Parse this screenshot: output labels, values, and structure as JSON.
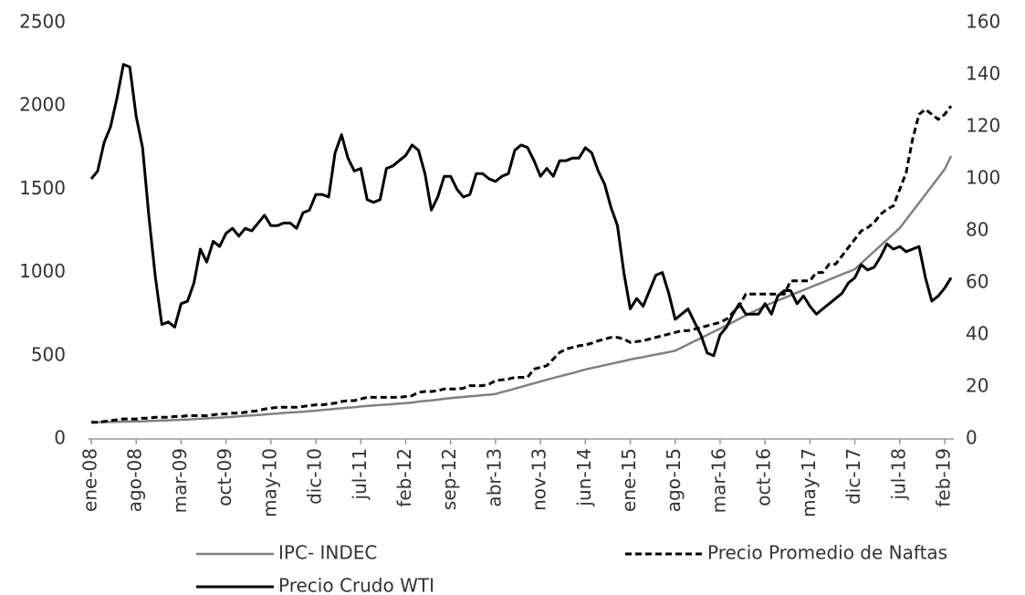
{
  "chart_data": {
    "type": "line",
    "categories": [
      "ene-08",
      null,
      null,
      null,
      null,
      null,
      null,
      "ago-08",
      null,
      null,
      null,
      null,
      null,
      null,
      "mar-09",
      null,
      null,
      null,
      null,
      null,
      null,
      "oct-09",
      null,
      null,
      null,
      null,
      null,
      null,
      "may-10",
      null,
      null,
      null,
      null,
      null,
      null,
      "dic-10",
      null,
      null,
      null,
      null,
      null,
      null,
      "jul-11",
      null,
      null,
      null,
      null,
      null,
      null,
      "feb-12",
      null,
      null,
      null,
      null,
      null,
      null,
      "sep-12",
      null,
      null,
      null,
      null,
      null,
      null,
      "abr-13",
      null,
      null,
      null,
      null,
      null,
      null,
      "nov-13",
      null,
      null,
      null,
      null,
      null,
      null,
      "jun-14",
      null,
      null,
      null,
      null,
      null,
      null,
      "ene-15",
      null,
      null,
      null,
      null,
      null,
      null,
      "ago-15",
      null,
      null,
      null,
      null,
      null,
      null,
      "mar-16",
      null,
      null,
      null,
      null,
      null,
      null,
      "oct-16",
      null,
      null,
      null,
      null,
      null,
      null,
      "may-17",
      null,
      null,
      null,
      null,
      null,
      null,
      "dic-17",
      null,
      null,
      null,
      null,
      null,
      null,
      "jul-18",
      null,
      null,
      null,
      null,
      null,
      null,
      "feb-19",
      null
    ],
    "series": [
      {
        "name": "IPC- INDEC",
        "color": "#808080",
        "dashed": false,
        "axis": "y",
        "values": [
          100,
          101,
          101,
          102,
          103,
          104,
          104,
          105,
          106,
          108,
          109,
          111,
          112,
          114,
          115,
          117,
          119,
          121,
          124,
          126,
          128,
          130,
          133,
          136,
          139,
          141,
          144,
          147,
          150,
          153,
          156,
          159,
          161,
          164,
          167,
          170,
          174,
          177,
          181,
          184,
          188,
          191,
          195,
          198,
          201,
          204,
          206,
          209,
          212,
          215,
          219,
          224,
          228,
          232,
          236,
          241,
          245,
          249,
          252,
          256,
          259,
          263,
          266,
          270,
          281,
          291,
          302,
          313,
          324,
          334,
          345,
          355,
          366,
          376,
          386,
          396,
          407,
          417,
          426,
          434,
          443,
          451,
          460,
          468,
          477,
          485,
          492,
          500,
          507,
          515,
          522,
          530,
          549,
          568,
          587,
          606,
          625,
          644,
          663,
          683,
          702,
          722,
          741,
          761,
          780,
          800,
          816,
          831,
          847,
          863,
          879,
          894,
          910,
          926,
          941,
          957,
          973,
          989,
          1004,
          1020,
          1055,
          1091,
          1126,
          1161,
          1196,
          1232,
          1267,
          1317,
          1368,
          1418,
          1469,
          1519,
          1570,
          1620,
          1700
        ]
      },
      {
        "name": "Precio Promedio de Naftas",
        "color": "#000000",
        "dashed": true,
        "axis": "y",
        "values": [
          100,
          100,
          105,
          110,
          115,
          120,
          120,
          120,
          125,
          125,
          130,
          130,
          130,
          135,
          135,
          140,
          140,
          140,
          140,
          145,
          150,
          150,
          155,
          155,
          160,
          165,
          170,
          180,
          185,
          190,
          190,
          190,
          190,
          195,
          200,
          205,
          205,
          210,
          215,
          225,
          230,
          230,
          240,
          250,
          250,
          250,
          250,
          250,
          250,
          255,
          260,
          280,
          285,
          285,
          290,
          300,
          300,
          300,
          305,
          320,
          320,
          320,
          330,
          350,
          355,
          360,
          370,
          370,
          370,
          420,
          430,
          440,
          480,
          520,
          540,
          550,
          560,
          565,
          575,
          590,
          600,
          610,
          610,
          600,
          580,
          585,
          590,
          600,
          610,
          620,
          630,
          640,
          650,
          650,
          660,
          670,
          680,
          690,
          700,
          720,
          760,
          800,
          870,
          870,
          870,
          870,
          870,
          870,
          870,
          950,
          950,
          950,
          950,
          1000,
          1000,
          1050,
          1050,
          1100,
          1150,
          1200,
          1250,
          1270,
          1300,
          1350,
          1380,
          1400,
          1500,
          1600,
          1800,
          1950,
          1980,
          1950,
          1920,
          1950,
          2000
        ]
      },
      {
        "name": "Precio Crudo WTI",
        "color": "#000000",
        "dashed": false,
        "axis": "y2",
        "values": [
          100,
          103,
          114,
          120,
          131,
          144,
          143,
          124,
          112,
          85,
          62,
          44,
          45,
          43,
          52,
          53,
          60,
          73,
          68,
          76,
          74,
          79,
          81,
          78,
          81,
          80,
          83,
          86,
          82,
          82,
          83,
          83,
          81,
          87,
          88,
          94,
          94,
          93,
          110,
          117,
          108,
          103,
          104,
          92,
          91,
          92,
          104,
          105,
          107,
          109,
          113,
          111,
          102,
          88,
          93,
          101,
          101,
          96,
          93,
          94,
          102,
          102,
          100,
          99,
          101,
          102,
          111,
          113,
          112,
          107,
          101,
          104,
          101,
          107,
          107,
          108,
          108,
          112,
          110,
          103,
          98,
          89,
          82,
          64,
          50,
          54,
          51,
          57,
          63,
          64,
          56,
          46,
          48,
          50,
          45,
          40,
          33,
          32,
          40,
          43,
          48,
          52,
          48,
          48,
          48,
          52,
          48,
          55,
          57,
          57,
          52,
          55,
          51,
          48,
          50,
          52,
          54,
          56,
          60,
          62,
          67,
          65,
          66,
          70,
          75,
          73,
          74,
          72,
          73,
          74,
          62,
          53,
          55,
          58,
          62
        ]
      }
    ],
    "ylim": [
      0,
      2500
    ],
    "yticks": [
      0,
      500,
      1000,
      1500,
      2000,
      2500
    ],
    "y2lim": [
      0,
      160
    ],
    "y2ticks": [
      0,
      20,
      40,
      60,
      80,
      100,
      120,
      140,
      160
    ],
    "grid": false
  }
}
